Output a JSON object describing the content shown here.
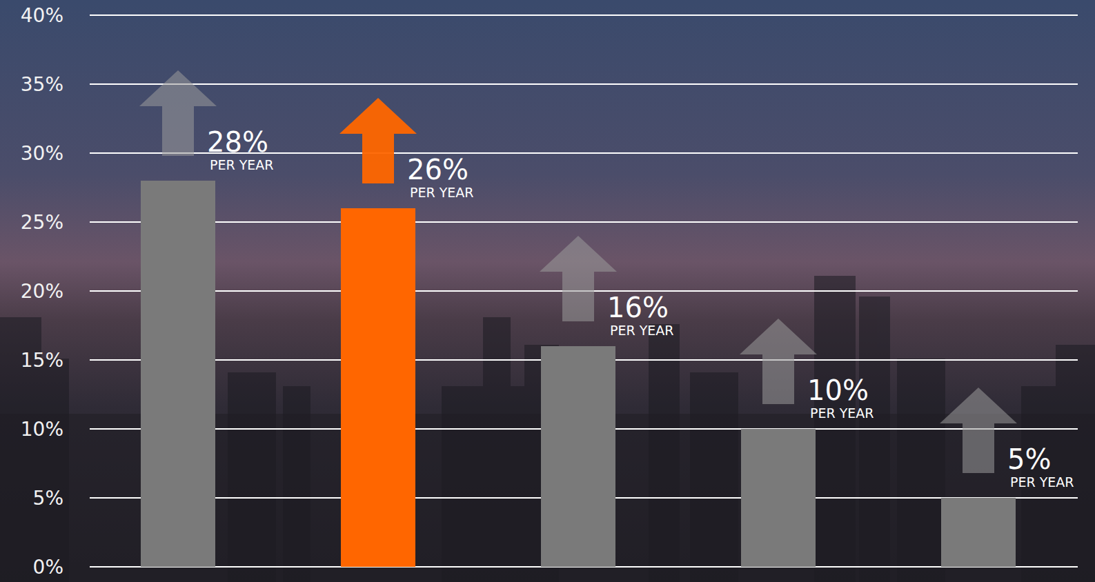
{
  "chart_data": {
    "type": "bar",
    "categories": [
      null,
      null,
      null,
      null,
      null
    ],
    "values": [
      28,
      26,
      16,
      10,
      5
    ],
    "value_labels": [
      "28%",
      "26%",
      "16%",
      "10%",
      "5%"
    ],
    "annotations": [
      "PER YEAR",
      "PER YEAR",
      "PER YEAR",
      "PER YEAR",
      "PER YEAR"
    ],
    "colors": [
      "#7a7a7a",
      "#ff6600",
      "#7a7a7a",
      "#7a7a7a",
      "#7a7a7a"
    ],
    "ylim": [
      0,
      40
    ],
    "yticks": [
      {
        "value": 0,
        "label": "0%"
      },
      {
        "value": 5,
        "label": "5%"
      },
      {
        "value": 10,
        "label": "10%"
      },
      {
        "value": 15,
        "label": "15%"
      },
      {
        "value": 20,
        "label": "20%"
      },
      {
        "value": 25,
        "label": "25%"
      },
      {
        "value": 30,
        "label": "30%"
      },
      {
        "value": 35,
        "label": "35%"
      },
      {
        "value": 40,
        "label": "40%"
      }
    ],
    "grid": true,
    "data_labels": true,
    "tick_labels": "y"
  }
}
